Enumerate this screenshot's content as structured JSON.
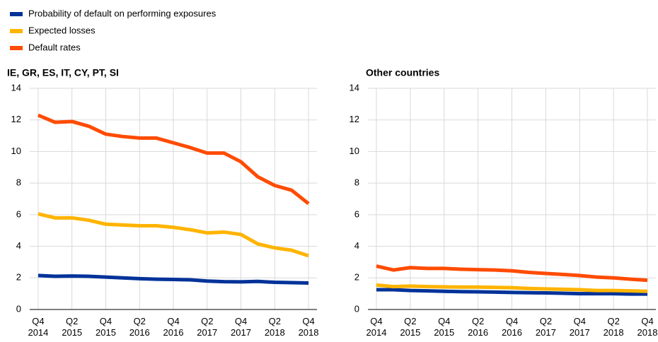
{
  "chart_data": [
    {
      "type": "line",
      "title": "IE, GR, ES, IT, CY, PT, SI",
      "categories": [
        "Q4 2014",
        null,
        "Q2 2015",
        null,
        "Q4 2015",
        null,
        "Q2 2016",
        null,
        "Q4 2016",
        null,
        "Q2 2017",
        null,
        "Q4 2017",
        null,
        "Q2 2018",
        null,
        "Q4 2018"
      ],
      "series": [
        {
          "name": "Probability of default on performing exposures",
          "color": "#003299",
          "values": [
            2.15,
            2.1,
            2.12,
            2.1,
            2.05,
            2.0,
            1.95,
            1.92,
            1.9,
            1.88,
            1.8,
            1.76,
            1.75,
            1.78,
            1.72,
            1.7,
            1.68
          ]
        },
        {
          "name": "Expected losses",
          "color": "#ffb400",
          "values": [
            6.05,
            5.8,
            5.8,
            5.65,
            5.4,
            5.35,
            5.3,
            5.3,
            5.2,
            5.05,
            4.85,
            4.9,
            4.75,
            4.15,
            3.9,
            3.75,
            3.4
          ]
        },
        {
          "name": "Default rates",
          "color": "#ff4b00",
          "values": [
            12.3,
            11.85,
            11.9,
            11.6,
            11.1,
            10.95,
            10.85,
            10.85,
            10.55,
            10.25,
            9.9,
            9.9,
            9.35,
            8.4,
            7.85,
            7.55,
            6.7
          ]
        }
      ],
      "ylim": [
        0,
        14
      ],
      "yticks": [
        0,
        2,
        4,
        6,
        8,
        10,
        12,
        14
      ],
      "grid": true
    },
    {
      "type": "line",
      "title": "Other countries",
      "categories": [
        "Q4 2014",
        null,
        "Q2 2015",
        null,
        "Q4 2015",
        null,
        "Q2 2016",
        null,
        "Q4 2016",
        null,
        "Q2 2017",
        null,
        "Q4 2017",
        null,
        "Q2 2018",
        null,
        "Q4 2018"
      ],
      "series": [
        {
          "name": "Probability of default on performing exposures",
          "color": "#003299",
          "values": [
            1.25,
            1.25,
            1.2,
            1.18,
            1.15,
            1.13,
            1.12,
            1.1,
            1.08,
            1.06,
            1.05,
            1.03,
            1.0,
            1.0,
            1.0,
            0.98,
            0.98
          ]
        },
        {
          "name": "Expected losses",
          "color": "#ffb400",
          "values": [
            1.55,
            1.45,
            1.48,
            1.45,
            1.43,
            1.42,
            1.42,
            1.4,
            1.38,
            1.33,
            1.3,
            1.28,
            1.25,
            1.2,
            1.2,
            1.18,
            1.15
          ]
        },
        {
          "name": "Default rates",
          "color": "#ff4b00",
          "values": [
            2.75,
            2.5,
            2.65,
            2.6,
            2.6,
            2.55,
            2.52,
            2.5,
            2.45,
            2.35,
            2.28,
            2.22,
            2.15,
            2.05,
            2.0,
            1.92,
            1.85
          ]
        }
      ],
      "ylim": [
        0,
        14
      ],
      "yticks": [
        0,
        2,
        4,
        6,
        8,
        10,
        12,
        14
      ],
      "grid": true
    }
  ]
}
